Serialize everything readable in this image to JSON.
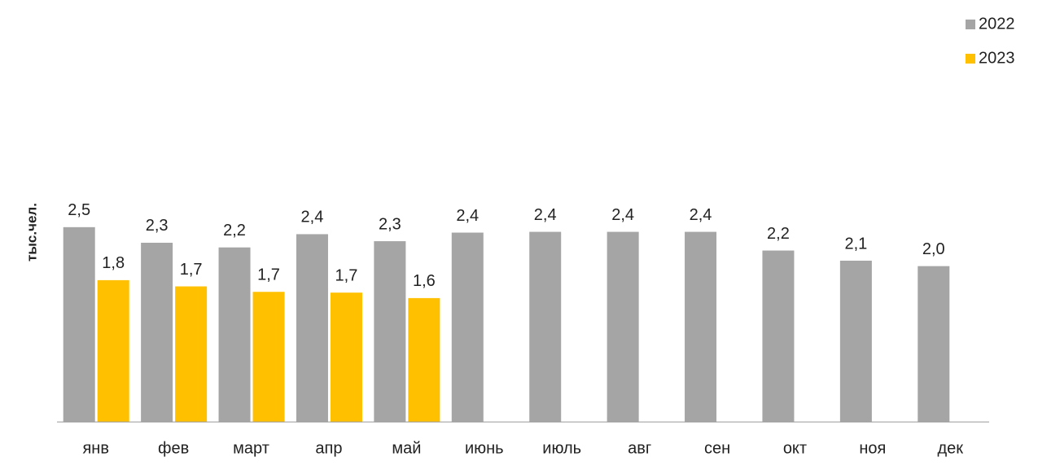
{
  "chart_data": {
    "type": "bar",
    "y_label": "тыс.чел.",
    "categories": [
      "янв",
      "фев",
      "март",
      "апр",
      "май",
      "июнь",
      "июль",
      "авг",
      "сен",
      "окт",
      "ноя",
      "дек"
    ],
    "series": [
      {
        "name": "2022",
        "color": "#a5a5a5",
        "values": [
          2.5,
          2.3,
          2.24,
          2.41,
          2.32,
          2.43,
          2.44,
          2.44,
          2.44,
          2.2,
          2.07,
          2.0
        ],
        "value_labels": [
          "2,5",
          "2,3",
          "2,2",
          "2,4",
          "2,3",
          "2,4",
          "2,4",
          "2,4",
          "2,4",
          "2,2",
          "2,1",
          "2,0"
        ]
      },
      {
        "name": "2023",
        "color": "#ffc000",
        "values": [
          1.82,
          1.74,
          1.67,
          1.66,
          1.59,
          null,
          null,
          null,
          null,
          null,
          null,
          null
        ],
        "value_labels": [
          "1,8",
          "1,7",
          "1,7",
          "1,7",
          "1,6",
          null,
          null,
          null,
          null,
          null,
          null,
          null
        ]
      }
    ],
    "ylim": [
      0,
      3
    ],
    "legend": "top-right"
  }
}
